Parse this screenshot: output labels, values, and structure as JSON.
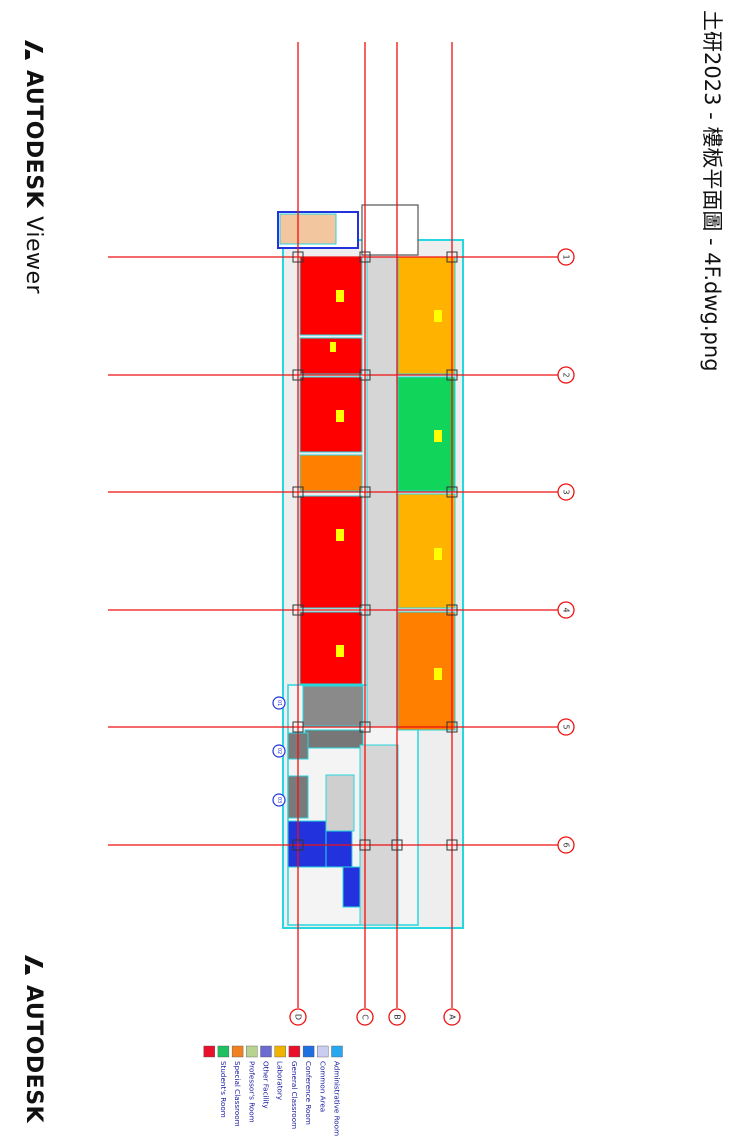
{
  "title": "土研2023 - 樓板平面圖 - 4F.dwg.png",
  "viewer": {
    "brand": "AUTODESK",
    "product": "Viewer"
  },
  "footer": {
    "brand": "AUTODESK"
  },
  "grid": {
    "row_tags": [
      "1",
      "2",
      "3",
      "4",
      "5",
      "6"
    ],
    "col_tags": [
      "A",
      "B",
      "C",
      "D"
    ]
  },
  "room_tags": [
    "01",
    "02",
    "03"
  ],
  "legend": [
    {
      "label": "Administrative Room",
      "color": "#29a8f0"
    },
    {
      "label": "Common Area",
      "color": "#c9cdf0"
    },
    {
      "label": "Conference Room",
      "color": "#1e6fe0"
    },
    {
      "label": "General Classroom",
      "color": "#e8102a"
    },
    {
      "label": "Laboratory",
      "color": "#f0b400"
    },
    {
      "label": "Other Facility",
      "color": "#6b6bd0"
    },
    {
      "label": "Professor's Room",
      "color": "#b8d290"
    },
    {
      "label": "Special Classroom",
      "color": "#f08020"
    },
    {
      "label": "Student's Room",
      "color": "#20c060"
    },
    {
      "label": "",
      "color": "#e8102a"
    }
  ],
  "colors": {
    "grid_line": "#ee1111",
    "wall": "#27d7e0",
    "general_classroom": "#ff0000",
    "special_classroom": "#ff7f00",
    "laboratory": "#ffb300",
    "students_room": "#11d45a",
    "common_area": "#d6d6d6",
    "conference_room": "#2233dd"
  }
}
